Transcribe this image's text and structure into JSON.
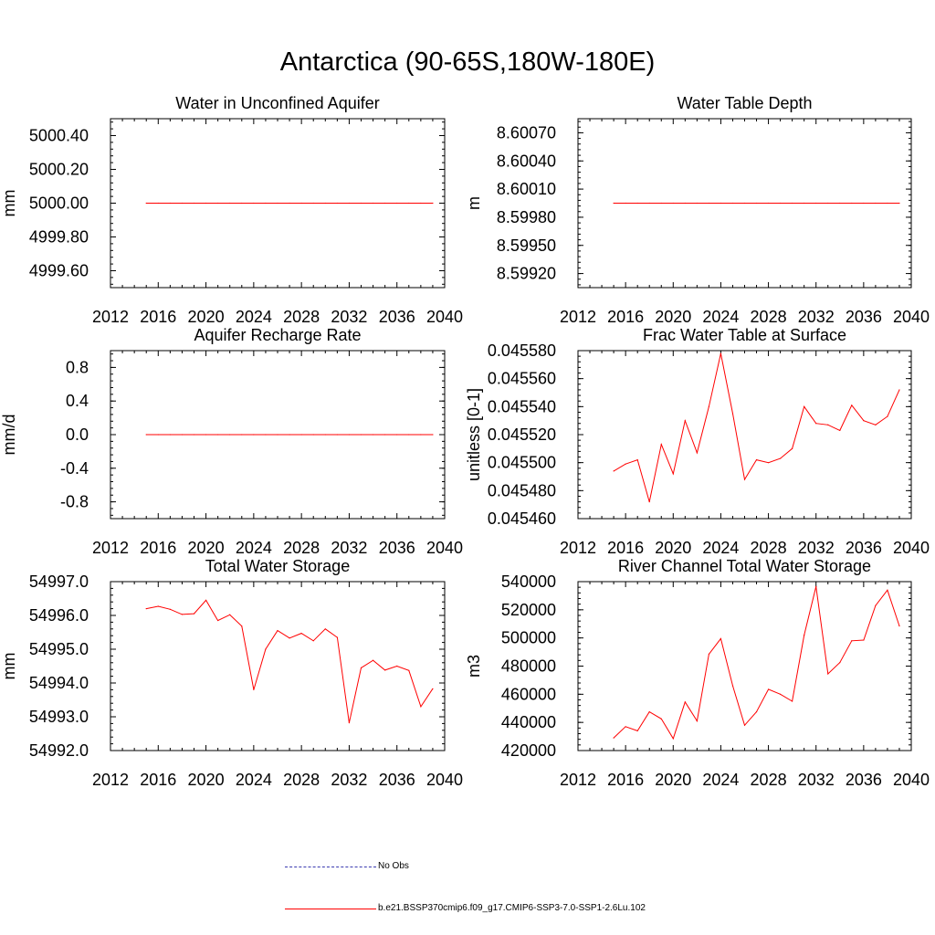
{
  "title": "Antarctica (90-65S,180W-180E)",
  "legend": {
    "obs_label": "No Obs",
    "model_label": "b.e21.BSSP370cmip6.f09_g17.CMIP6-SSP3-7.0-SSP1-2.6Lu.102",
    "obs_color": "#3a3ab0",
    "model_color": "#ff0000"
  },
  "chart_data": [
    {
      "type": "line",
      "title": "Water in Unconfined Aquifer",
      "xlabel": "",
      "ylabel": "mm",
      "xlim": [
        2012,
        2040
      ],
      "ylim": [
        4999.5,
        5000.5
      ],
      "xticks": [
        2012,
        2016,
        2020,
        2024,
        2028,
        2032,
        2036,
        2040
      ],
      "xtick_labels": [
        "2012",
        "2016",
        "2020",
        "2024",
        "2028",
        "2032",
        "2036",
        "2040"
      ],
      "yticks": [
        4999.6,
        4999.8,
        5000.0,
        5000.2,
        5000.4
      ],
      "ytick_labels": [
        "4999.60",
        "4999.80",
        "5000.00",
        "5000.20",
        "5000.40"
      ],
      "x": [
        2015,
        2016,
        2017,
        2018,
        2019,
        2020,
        2021,
        2022,
        2023,
        2024,
        2025,
        2026,
        2027,
        2028,
        2029,
        2030,
        2031,
        2032,
        2033,
        2034,
        2035,
        2036,
        2037,
        2038,
        2039
      ],
      "series": [
        {
          "values": [
            5000.0,
            5000.0,
            5000.0,
            5000.0,
            5000.0,
            5000.0,
            5000.0,
            5000.0,
            5000.0,
            5000.0,
            5000.0,
            5000.0,
            5000.0,
            5000.0,
            5000.0,
            5000.0,
            5000.0,
            5000.0,
            5000.0,
            5000.0,
            5000.0,
            5000.0,
            5000.0,
            5000.0,
            5000.0
          ]
        }
      ]
    },
    {
      "type": "line",
      "title": "Water Table Depth",
      "xlabel": "",
      "ylabel": "m",
      "xlim": [
        2012,
        2040
      ],
      "ylim": [
        8.59905,
        8.60085
      ],
      "xticks": [
        2012,
        2016,
        2020,
        2024,
        2028,
        2032,
        2036,
        2040
      ],
      "xtick_labels": [
        "2012",
        "2016",
        "2020",
        "2024",
        "2028",
        "2032",
        "2036",
        "2040"
      ],
      "yticks": [
        8.5992,
        8.5995,
        8.5998,
        8.6001,
        8.6004,
        8.6007
      ],
      "ytick_labels": [
        "8.59920",
        "8.59950",
        "8.59980",
        "8.60010",
        "8.60040",
        "8.60070"
      ],
      "x": [
        2015,
        2016,
        2017,
        2018,
        2019,
        2020,
        2021,
        2022,
        2023,
        2024,
        2025,
        2026,
        2027,
        2028,
        2029,
        2030,
        2031,
        2032,
        2033,
        2034,
        2035,
        2036,
        2037,
        2038,
        2039
      ],
      "series": [
        {
          "values": [
            8.59995,
            8.59995,
            8.59995,
            8.59995,
            8.59995,
            8.59995,
            8.59995,
            8.59995,
            8.59995,
            8.59995,
            8.59995,
            8.59995,
            8.59995,
            8.59995,
            8.59995,
            8.59995,
            8.59995,
            8.59995,
            8.59995,
            8.59995,
            8.59995,
            8.59995,
            8.59995,
            8.59995,
            8.59995
          ]
        }
      ]
    },
    {
      "type": "line",
      "title": "Aquifer Recharge Rate",
      "xlabel": "",
      "ylabel": "mm/d",
      "xlim": [
        2012,
        2040
      ],
      "ylim": [
        -1.0,
        1.0
      ],
      "xticks": [
        2012,
        2016,
        2020,
        2024,
        2028,
        2032,
        2036,
        2040
      ],
      "xtick_labels": [
        "2012",
        "2016",
        "2020",
        "2024",
        "2028",
        "2032",
        "2036",
        "2040"
      ],
      "yticks": [
        -0.8,
        -0.4,
        0.0,
        0.4,
        0.8
      ],
      "ytick_labels": [
        "-0.8",
        "-0.4",
        "0.0",
        "0.4",
        "0.8"
      ],
      "x": [
        2015,
        2016,
        2017,
        2018,
        2019,
        2020,
        2021,
        2022,
        2023,
        2024,
        2025,
        2026,
        2027,
        2028,
        2029,
        2030,
        2031,
        2032,
        2033,
        2034,
        2035,
        2036,
        2037,
        2038,
        2039
      ],
      "series": [
        {
          "values": [
            0.0,
            0.0,
            0.0,
            0.0,
            0.0,
            0.0,
            0.0,
            0.0,
            0.0,
            0.0,
            0.0,
            0.0,
            0.0,
            0.0,
            0.0,
            0.0,
            0.0,
            0.0,
            0.0,
            0.0,
            0.0,
            0.0,
            0.0,
            0.0,
            0.0
          ]
        }
      ]
    },
    {
      "type": "line",
      "title": "Frac Water Table at Surface",
      "xlabel": "",
      "ylabel": "unitless [0-1]",
      "xlim": [
        2012,
        2040
      ],
      "ylim": [
        0.04546,
        0.04558
      ],
      "xticks": [
        2012,
        2016,
        2020,
        2024,
        2028,
        2032,
        2036,
        2040
      ],
      "xtick_labels": [
        "2012",
        "2016",
        "2020",
        "2024",
        "2028",
        "2032",
        "2036",
        "2040"
      ],
      "yticks": [
        0.04546,
        0.04548,
        0.0455,
        0.04552,
        0.04554,
        0.04556,
        0.04558
      ],
      "ytick_labels": [
        "0.045460",
        "0.045480",
        "0.045500",
        "0.045520",
        "0.045540",
        "0.045560",
        "0.045580"
      ],
      "x": [
        2015,
        2016,
        2017,
        2018,
        2019,
        2020,
        2021,
        2022,
        2023,
        2024,
        2025,
        2026,
        2027,
        2028,
        2029,
        2030,
        2031,
        2032,
        2033,
        2034,
        2035,
        2036,
        2037,
        2038,
        2039
      ],
      "series": [
        {
          "values": [
            0.045494,
            0.045499,
            0.045502,
            0.045472,
            0.045513,
            0.045492,
            0.04553,
            0.045507,
            0.04554,
            0.045578,
            0.045535,
            0.045488,
            0.045502,
            0.0455,
            0.045503,
            0.04551,
            0.04554,
            0.045528,
            0.045527,
            0.045523,
            0.045541,
            0.04553,
            0.045527,
            0.045533,
            0.045552
          ]
        }
      ]
    },
    {
      "type": "line",
      "title": "Total Water Storage",
      "xlabel": "",
      "ylabel": "mm",
      "xlim": [
        2012,
        2040
      ],
      "ylim": [
        54992.0,
        54997.0
      ],
      "xticks": [
        2012,
        2016,
        2020,
        2024,
        2028,
        2032,
        2036,
        2040
      ],
      "xtick_labels": [
        "2012",
        "2016",
        "2020",
        "2024",
        "2028",
        "2032",
        "2036",
        "2040"
      ],
      "yticks": [
        54992.0,
        54993.0,
        54994.0,
        54995.0,
        54996.0,
        54997.0
      ],
      "ytick_labels": [
        "54992.0",
        "54993.0",
        "54994.0",
        "54995.0",
        "54996.0",
        "54997.0"
      ],
      "x": [
        2015,
        2016,
        2017,
        2018,
        2019,
        2020,
        2021,
        2022,
        2023,
        2024,
        2025,
        2026,
        2027,
        2028,
        2029,
        2030,
        2031,
        2032,
        2033,
        2034,
        2035,
        2036,
        2037,
        2038,
        2039
      ],
      "series": [
        {
          "values": [
            54996.2,
            54996.27,
            54996.18,
            54996.03,
            54996.05,
            54996.45,
            54995.85,
            54996.02,
            54995.68,
            54993.8,
            54995.0,
            54995.55,
            54995.33,
            54995.47,
            54995.25,
            54995.6,
            54995.35,
            54992.82,
            54994.45,
            54994.67,
            54994.38,
            54994.5,
            54994.37,
            54993.3,
            54993.83
          ]
        }
      ]
    },
    {
      "type": "line",
      "title": "River Channel Total Water Storage",
      "xlabel": "",
      "ylabel": "m3",
      "xlim": [
        2012,
        2040
      ],
      "ylim": [
        420000,
        540000
      ],
      "xticks": [
        2012,
        2016,
        2020,
        2024,
        2028,
        2032,
        2036,
        2040
      ],
      "xtick_labels": [
        "2012",
        "2016",
        "2020",
        "2024",
        "2028",
        "2032",
        "2036",
        "2040"
      ],
      "yticks": [
        420000,
        440000,
        460000,
        480000,
        500000,
        520000,
        540000
      ],
      "ytick_labels": [
        "420000",
        "440000",
        "460000",
        "480000",
        "500000",
        "520000",
        "540000"
      ],
      "x": [
        2015,
        2016,
        2017,
        2018,
        2019,
        2020,
        2021,
        2022,
        2023,
        2024,
        2025,
        2026,
        2027,
        2028,
        2029,
        2030,
        2031,
        2032,
        2033,
        2034,
        2035,
        2036,
        2037,
        2038,
        2039
      ],
      "series": [
        {
          "values": [
            429000,
            437000,
            434000,
            447500,
            442500,
            428500,
            454500,
            441000,
            488500,
            499500,
            466000,
            438000,
            447500,
            463500,
            460000,
            455000,
            502000,
            536500,
            474500,
            482500,
            498000,
            498500,
            523000,
            534000,
            508500
          ]
        }
      ]
    }
  ]
}
